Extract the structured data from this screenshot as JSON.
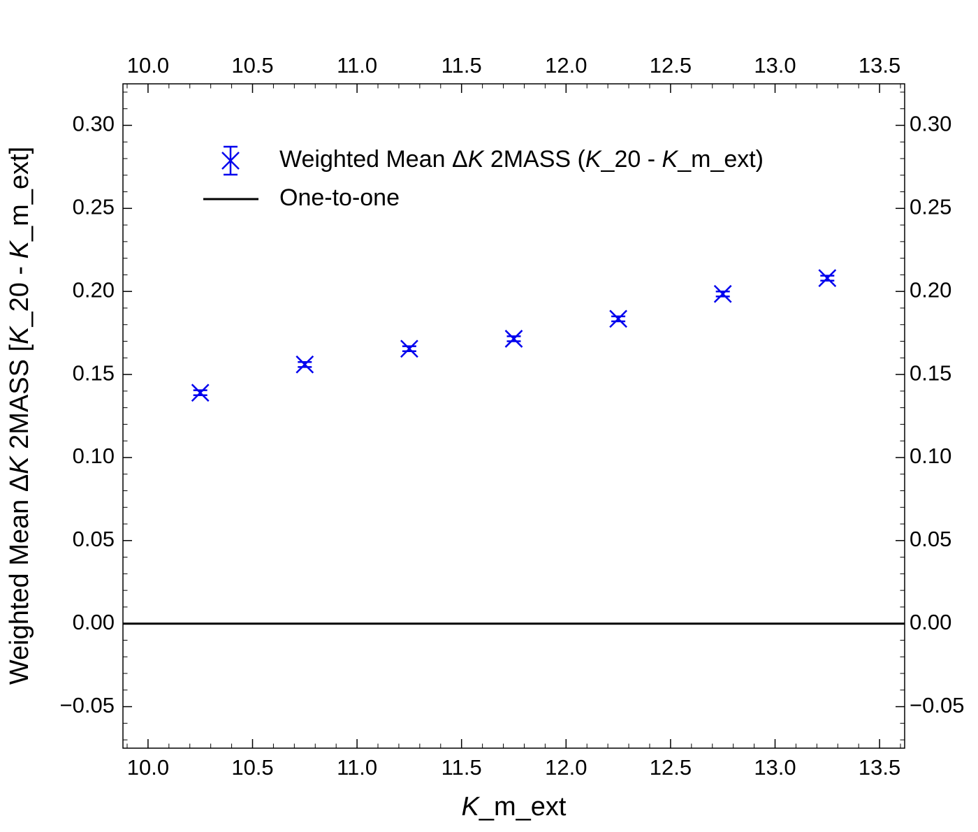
{
  "chart_data": {
    "type": "scatter",
    "xlabel": {
      "italic": "K",
      "rest": "_m_ext"
    },
    "ylabel": [
      {
        "text": "Weighted Mean Δ",
        "italic": false
      },
      {
        "text": "K",
        "italic": true
      },
      {
        "text": " 2MASS [",
        "italic": false
      },
      {
        "text": "K",
        "italic": true
      },
      {
        "text": "_20 - ",
        "italic": false
      },
      {
        "text": "K",
        "italic": true
      },
      {
        "text": "_m_ext]",
        "italic": false
      }
    ],
    "xlim": [
      9.88,
      13.62
    ],
    "ylim": [
      -0.075,
      0.325
    ],
    "xticks": [
      10.0,
      10.5,
      11.0,
      11.5,
      12.0,
      12.5,
      13.0,
      13.5
    ],
    "xtick_labels": [
      "10.0",
      "10.5",
      "11.0",
      "11.5",
      "12.0",
      "12.5",
      "13.0",
      "13.5"
    ],
    "yticks": [
      -0.05,
      0.0,
      0.05,
      0.1,
      0.15,
      0.2,
      0.25,
      0.3
    ],
    "ytick_labels": [
      "−0.05",
      "0.00",
      "0.05",
      "0.10",
      "0.15",
      "0.20",
      "0.25",
      "0.30"
    ],
    "x_minor_step": 0.1,
    "y_minor_step": 0.01,
    "grid": false,
    "legend_position": "upper-center",
    "series": [
      {
        "legend_parts": [
          {
            "text": "Weighted Mean Δ",
            "italic": false
          },
          {
            "text": "K",
            "italic": true
          },
          {
            "text": " 2MASS (",
            "italic": false
          },
          {
            "text": "K",
            "italic": true
          },
          {
            "text": "_20 - ",
            "italic": false
          },
          {
            "text": "K",
            "italic": true
          },
          {
            "text": "_m_ext)",
            "italic": false
          }
        ],
        "color": "#0000ee",
        "marker": "x",
        "x": [
          10.25,
          10.75,
          11.25,
          11.75,
          12.25,
          12.75,
          13.25
        ],
        "y": [
          0.139,
          0.156,
          0.1655,
          0.1715,
          0.1835,
          0.1985,
          0.208
        ],
        "yerr": [
          0.0015,
          0.0015,
          0.0015,
          0.0015,
          0.0015,
          0.0015,
          0.0015
        ]
      },
      {
        "name": "One-to-one",
        "color": "#000000",
        "type": "hline",
        "y": 0.0
      }
    ]
  }
}
